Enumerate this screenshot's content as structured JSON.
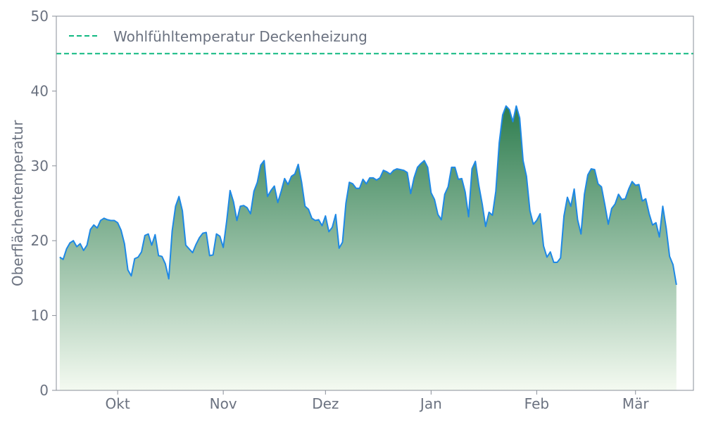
{
  "chart_data": {
    "type": "area",
    "ylabel": "Oberflächentemperatur",
    "xlabel": "",
    "ylim": [
      0,
      50
    ],
    "yticks": [
      0,
      10,
      20,
      30,
      40,
      50
    ],
    "x_range": [
      "2023-09-13",
      "2024-03-18"
    ],
    "xticks": [
      {
        "date": "2023-10-01",
        "label": "Okt"
      },
      {
        "date": "2023-11-01",
        "label": "Nov"
      },
      {
        "date": "2023-12-01",
        "label": "Dez"
      },
      {
        "date": "2024-01-01",
        "label": "Jan"
      },
      {
        "date": "2024-02-01",
        "label": "Feb"
      },
      {
        "date": "2024-03-01",
        "label": "Mär"
      }
    ],
    "grid": false,
    "legend_position": "top-left",
    "reference_line": {
      "name": "Wohlfühltemperatur Deckenheizung",
      "y": 45,
      "color": "#10b981",
      "style": "dashed"
    },
    "series": [
      {
        "line_color": "#1e88e5",
        "fill_gradient": [
          "#2e7d4f",
          "#f4faf1"
        ],
        "points": [
          [
            "2023-09-14",
            17.8
          ],
          [
            "2023-09-15",
            17.5
          ],
          [
            "2023-09-16",
            18.9
          ],
          [
            "2023-09-17",
            19.7
          ],
          [
            "2023-09-18",
            20.0
          ],
          [
            "2023-09-19",
            19.2
          ],
          [
            "2023-09-20",
            19.6
          ],
          [
            "2023-09-21",
            18.7
          ],
          [
            "2023-09-22",
            19.4
          ],
          [
            "2023-09-23",
            21.5
          ],
          [
            "2023-09-24",
            22.1
          ],
          [
            "2023-09-25",
            21.7
          ],
          [
            "2023-09-26",
            22.7
          ],
          [
            "2023-09-27",
            23.0
          ],
          [
            "2023-09-28",
            22.8
          ],
          [
            "2023-09-29",
            22.7
          ],
          [
            "2023-09-30",
            22.7
          ],
          [
            "2023-10-01",
            22.4
          ],
          [
            "2023-10-02",
            21.4
          ],
          [
            "2023-10-03",
            19.6
          ],
          [
            "2023-10-04",
            16.1
          ],
          [
            "2023-10-05",
            15.3
          ],
          [
            "2023-10-06",
            17.6
          ],
          [
            "2023-10-07",
            17.8
          ],
          [
            "2023-10-08",
            18.5
          ],
          [
            "2023-10-09",
            20.7
          ],
          [
            "2023-10-10",
            20.9
          ],
          [
            "2023-10-11",
            19.4
          ],
          [
            "2023-10-12",
            20.8
          ],
          [
            "2023-10-13",
            18.0
          ],
          [
            "2023-10-14",
            17.9
          ],
          [
            "2023-10-15",
            16.9
          ],
          [
            "2023-10-16",
            14.9
          ],
          [
            "2023-10-17",
            21.3
          ],
          [
            "2023-10-18",
            24.6
          ],
          [
            "2023-10-19",
            25.9
          ],
          [
            "2023-10-20",
            24.0
          ],
          [
            "2023-10-21",
            19.4
          ],
          [
            "2023-10-22",
            18.9
          ],
          [
            "2023-10-23",
            18.4
          ],
          [
            "2023-10-24",
            19.5
          ],
          [
            "2023-10-25",
            20.4
          ],
          [
            "2023-10-26",
            21.0
          ],
          [
            "2023-10-27",
            21.1
          ],
          [
            "2023-10-28",
            18.0
          ],
          [
            "2023-10-29",
            18.1
          ],
          [
            "2023-10-30",
            20.9
          ],
          [
            "2023-10-31",
            20.6
          ],
          [
            "2023-11-01",
            19.1
          ],
          [
            "2023-11-02",
            22.6
          ],
          [
            "2023-11-03",
            26.7
          ],
          [
            "2023-11-04",
            25.2
          ],
          [
            "2023-11-05",
            22.7
          ],
          [
            "2023-11-06",
            24.6
          ],
          [
            "2023-11-07",
            24.7
          ],
          [
            "2023-11-08",
            24.4
          ],
          [
            "2023-11-09",
            23.6
          ],
          [
            "2023-11-10",
            26.6
          ],
          [
            "2023-11-11",
            27.8
          ],
          [
            "2023-11-12",
            30.1
          ],
          [
            "2023-11-13",
            30.7
          ],
          [
            "2023-11-14",
            25.9
          ],
          [
            "2023-11-15",
            26.7
          ],
          [
            "2023-11-16",
            27.3
          ],
          [
            "2023-11-17",
            25.1
          ],
          [
            "2023-11-18",
            26.6
          ],
          [
            "2023-11-19",
            28.3
          ],
          [
            "2023-11-20",
            27.5
          ],
          [
            "2023-11-21",
            28.6
          ],
          [
            "2023-11-22",
            28.9
          ],
          [
            "2023-11-23",
            30.2
          ],
          [
            "2023-11-24",
            27.8
          ],
          [
            "2023-11-25",
            24.6
          ],
          [
            "2023-11-26",
            24.2
          ],
          [
            "2023-11-27",
            23.0
          ],
          [
            "2023-11-28",
            22.7
          ],
          [
            "2023-11-29",
            22.8
          ],
          [
            "2023-11-30",
            22.0
          ],
          [
            "2023-12-01",
            23.3
          ],
          [
            "2023-12-02",
            21.2
          ],
          [
            "2023-12-03",
            21.8
          ],
          [
            "2023-12-04",
            23.5
          ],
          [
            "2023-12-05",
            19.0
          ],
          [
            "2023-12-06",
            19.8
          ],
          [
            "2023-12-07",
            25.0
          ],
          [
            "2023-12-08",
            27.8
          ],
          [
            "2023-12-09",
            27.6
          ],
          [
            "2023-12-10",
            27.0
          ],
          [
            "2023-12-11",
            27.0
          ],
          [
            "2023-12-12",
            28.2
          ],
          [
            "2023-12-13",
            27.6
          ],
          [
            "2023-12-14",
            28.4
          ],
          [
            "2023-12-15",
            28.4
          ],
          [
            "2023-12-16",
            28.1
          ],
          [
            "2023-12-17",
            28.4
          ],
          [
            "2023-12-18",
            29.4
          ],
          [
            "2023-12-19",
            29.2
          ],
          [
            "2023-12-20",
            28.9
          ],
          [
            "2023-12-21",
            29.4
          ],
          [
            "2023-12-22",
            29.6
          ],
          [
            "2023-12-23",
            29.5
          ],
          [
            "2023-12-24",
            29.4
          ],
          [
            "2023-12-25",
            29.1
          ],
          [
            "2023-12-26",
            26.3
          ],
          [
            "2023-12-27",
            28.4
          ],
          [
            "2023-12-28",
            29.8
          ],
          [
            "2023-12-29",
            30.3
          ],
          [
            "2023-12-30",
            30.7
          ],
          [
            "2023-12-31",
            29.8
          ],
          [
            "2024-01-01",
            26.4
          ],
          [
            "2024-01-02",
            25.5
          ],
          [
            "2024-01-03",
            23.5
          ],
          [
            "2024-01-04",
            22.8
          ],
          [
            "2024-01-05",
            26.2
          ],
          [
            "2024-01-06",
            27.2
          ],
          [
            "2024-01-07",
            29.8
          ],
          [
            "2024-01-08",
            29.8
          ],
          [
            "2024-01-09",
            28.2
          ],
          [
            "2024-01-10",
            28.3
          ],
          [
            "2024-01-11",
            26.5
          ],
          [
            "2024-01-12",
            23.2
          ],
          [
            "2024-01-13",
            29.6
          ],
          [
            "2024-01-14",
            30.6
          ],
          [
            "2024-01-15",
            27.4
          ],
          [
            "2024-01-16",
            24.9
          ],
          [
            "2024-01-17",
            21.9
          ],
          [
            "2024-01-18",
            23.8
          ],
          [
            "2024-01-19",
            23.4
          ],
          [
            "2024-01-20",
            26.6
          ],
          [
            "2024-01-21",
            33.1
          ],
          [
            "2024-01-22",
            36.8
          ],
          [
            "2024-01-23",
            38.0
          ],
          [
            "2024-01-24",
            37.5
          ],
          [
            "2024-01-25",
            35.9
          ],
          [
            "2024-01-26",
            38.0
          ],
          [
            "2024-01-27",
            36.4
          ],
          [
            "2024-01-28",
            30.7
          ],
          [
            "2024-01-29",
            28.6
          ],
          [
            "2024-01-30",
            24.0
          ],
          [
            "2024-01-31",
            22.2
          ],
          [
            "2024-02-01",
            22.7
          ],
          [
            "2024-02-02",
            23.6
          ],
          [
            "2024-02-03",
            19.3
          ],
          [
            "2024-02-04",
            17.8
          ],
          [
            "2024-02-05",
            18.5
          ],
          [
            "2024-02-06",
            17.1
          ],
          [
            "2024-02-07",
            17.1
          ],
          [
            "2024-02-08",
            17.7
          ],
          [
            "2024-02-09",
            23.3
          ],
          [
            "2024-02-10",
            25.8
          ],
          [
            "2024-02-11",
            24.6
          ],
          [
            "2024-02-12",
            26.9
          ],
          [
            "2024-02-13",
            22.8
          ],
          [
            "2024-02-14",
            20.9
          ],
          [
            "2024-02-15",
            26.2
          ],
          [
            "2024-02-16",
            28.8
          ],
          [
            "2024-02-17",
            29.6
          ],
          [
            "2024-02-18",
            29.5
          ],
          [
            "2024-02-19",
            27.6
          ],
          [
            "2024-02-20",
            27.2
          ],
          [
            "2024-02-21",
            24.8
          ],
          [
            "2024-02-22",
            22.2
          ],
          [
            "2024-02-23",
            24.3
          ],
          [
            "2024-02-24",
            24.9
          ],
          [
            "2024-02-25",
            26.2
          ],
          [
            "2024-02-26",
            25.5
          ],
          [
            "2024-02-27",
            25.6
          ],
          [
            "2024-02-28",
            26.9
          ],
          [
            "2024-02-29",
            27.9
          ],
          [
            "2024-03-01",
            27.4
          ],
          [
            "2024-03-02",
            27.5
          ],
          [
            "2024-03-03",
            25.3
          ],
          [
            "2024-03-04",
            25.6
          ],
          [
            "2024-03-05",
            23.6
          ],
          [
            "2024-03-06",
            22.1
          ],
          [
            "2024-03-07",
            22.4
          ],
          [
            "2024-03-08",
            20.5
          ],
          [
            "2024-03-09",
            24.6
          ],
          [
            "2024-03-10",
            21.7
          ],
          [
            "2024-03-11",
            17.9
          ],
          [
            "2024-03-12",
            16.8
          ],
          [
            "2024-03-13",
            14.1
          ]
        ]
      }
    ]
  }
}
